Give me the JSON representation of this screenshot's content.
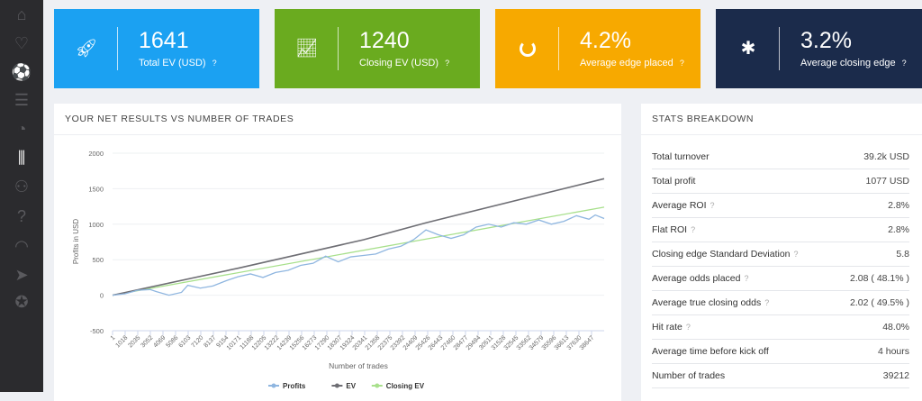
{
  "sidebar": {
    "items": [
      {
        "icon": "home-icon"
      },
      {
        "icon": "heart-icon"
      },
      {
        "icon": "soccer-ball-icon"
      },
      {
        "icon": "list-icon"
      },
      {
        "icon": "pie-chart-icon"
      },
      {
        "icon": "sliders-icon",
        "active": true
      },
      {
        "icon": "users-icon"
      },
      {
        "icon": "help-icon"
      },
      {
        "icon": "gauge-icon"
      },
      {
        "icon": "send-icon"
      },
      {
        "icon": "award-icon"
      }
    ]
  },
  "cards": [
    {
      "value": "1641",
      "label": "Total EV (USD)",
      "icon": "rocket-icon",
      "color": "#1ba1f2"
    },
    {
      "value": "1240",
      "label": "Closing EV (USD)",
      "icon": "line-chart-icon",
      "color": "#6aab1f"
    },
    {
      "value": "4.2%",
      "label": "Average edge placed",
      "icon": "ring-icon",
      "color": "#f7a900"
    },
    {
      "value": "3.2%",
      "label": "Average closing edge",
      "icon": "gear-icon",
      "color": "#1b2b4b"
    }
  ],
  "chart_panel": {
    "title": "YOUR NET RESULTS VS NUMBER OF TRADES"
  },
  "chart_data": {
    "type": "line",
    "xlabel": "Number of trades",
    "ylabel": "Profits in USD",
    "ylim": [
      -500,
      2000
    ],
    "xlim": [
      1,
      39212
    ],
    "yticks": [
      "2000",
      "1500",
      "1000",
      "500",
      "0",
      "-500"
    ],
    "xticks": [
      "1",
      "1018",
      "2035",
      "3052",
      "4069",
      "5086",
      "6103",
      "7120",
      "8137",
      "9154",
      "10171",
      "11188",
      "12205",
      "13222",
      "14239",
      "15256",
      "16273",
      "17290",
      "18307",
      "19324",
      "20341",
      "21358",
      "22375",
      "23392",
      "24409",
      "25426",
      "26443",
      "27460",
      "28477",
      "29494",
      "30511",
      "31528",
      "32545",
      "33562",
      "34579",
      "35596",
      "36613",
      "37630",
      "38647"
    ],
    "legend": "bottom",
    "series": [
      {
        "name": "Profits",
        "color": "#8fb6e0",
        "points": [
          [
            1,
            0
          ],
          [
            1000,
            20
          ],
          [
            2000,
            70
          ],
          [
            3000,
            80
          ],
          [
            3500,
            50
          ],
          [
            4500,
            0
          ],
          [
            5500,
            40
          ],
          [
            6000,
            140
          ],
          [
            7000,
            100
          ],
          [
            8000,
            130
          ],
          [
            9000,
            200
          ],
          [
            10000,
            260
          ],
          [
            11000,
            300
          ],
          [
            12000,
            250
          ],
          [
            13000,
            320
          ],
          [
            14000,
            350
          ],
          [
            15000,
            420
          ],
          [
            16000,
            450
          ],
          [
            17000,
            550
          ],
          [
            18000,
            470
          ],
          [
            19000,
            540
          ],
          [
            20000,
            560
          ],
          [
            21000,
            580
          ],
          [
            22000,
            650
          ],
          [
            23000,
            690
          ],
          [
            24000,
            780
          ],
          [
            25000,
            920
          ],
          [
            26000,
            850
          ],
          [
            27000,
            800
          ],
          [
            28000,
            850
          ],
          [
            29000,
            960
          ],
          [
            30000,
            1000
          ],
          [
            31000,
            960
          ],
          [
            32000,
            1020
          ],
          [
            33000,
            1000
          ],
          [
            34000,
            1060
          ],
          [
            35000,
            1000
          ],
          [
            36000,
            1040
          ],
          [
            37000,
            1120
          ],
          [
            38000,
            1070
          ],
          [
            38500,
            1130
          ],
          [
            39212,
            1080
          ]
        ]
      },
      {
        "name": "EV",
        "color": "#6e6e74",
        "points": [
          [
            1,
            0
          ],
          [
            10000,
            380
          ],
          [
            20000,
            780
          ],
          [
            25000,
            1020
          ],
          [
            39212,
            1641
          ]
        ]
      },
      {
        "name": "Closing EV",
        "color": "#a8e08c",
        "points": [
          [
            1,
            0
          ],
          [
            39212,
            1240
          ]
        ]
      }
    ]
  },
  "stats": {
    "title": "STATS BREAKDOWN",
    "rows": [
      {
        "label": "Total turnover",
        "value": "39.2k USD"
      },
      {
        "label": "Total profit",
        "value": "1077 USD"
      },
      {
        "label": "Average ROI",
        "value": "2.8%",
        "help": true
      },
      {
        "label": "Flat ROI",
        "value": "2.8%",
        "help": true
      },
      {
        "label": "Closing edge Standard Deviation",
        "value": "5.8",
        "help": true
      },
      {
        "label": "Average odds placed",
        "value": "2.08 ( 48.1% )",
        "help": true
      },
      {
        "label": "Average true closing odds",
        "value": "2.02 ( 49.5% )",
        "help": true
      },
      {
        "label": "Hit rate",
        "value": "48.0%",
        "help": true
      },
      {
        "label": "Average time before kick off",
        "value": "4 hours"
      },
      {
        "label": "Number of trades",
        "value": "39212"
      }
    ]
  },
  "help_glyph": "?"
}
